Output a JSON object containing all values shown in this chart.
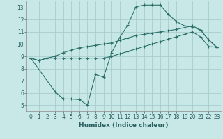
{
  "xlabel": "Humidex (Indice chaleur)",
  "xlim": [
    -0.5,
    23.5
  ],
  "ylim": [
    4.5,
    13.5
  ],
  "xticks": [
    0,
    1,
    2,
    3,
    4,
    5,
    6,
    7,
    8,
    9,
    10,
    11,
    12,
    13,
    14,
    15,
    16,
    17,
    18,
    19,
    20,
    21,
    22,
    23
  ],
  "yticks": [
    5,
    6,
    7,
    8,
    9,
    10,
    11,
    12,
    13
  ],
  "background_color": "#c8e8e8",
  "grid_color": "#a8cccc",
  "line_color": "#2a7068",
  "line1_x": [
    0,
    1,
    2,
    3,
    4,
    5,
    6,
    7,
    8,
    9,
    10,
    11,
    12,
    13,
    14,
    15,
    16,
    17,
    18,
    19,
    20,
    21,
    22,
    23
  ],
  "line1_y": [
    8.85,
    8.65,
    8.85,
    8.85,
    8.85,
    8.85,
    8.85,
    8.85,
    8.85,
    8.85,
    9.0,
    9.2,
    9.4,
    9.6,
    9.8,
    10.0,
    10.2,
    10.4,
    10.6,
    10.8,
    11.0,
    10.6,
    9.8,
    9.75
  ],
  "line2_x": [
    0,
    1,
    2,
    3,
    4,
    5,
    6,
    7,
    8,
    9,
    10,
    11,
    12,
    13,
    14,
    15,
    16,
    17,
    18,
    19,
    20,
    21,
    22,
    23
  ],
  "line2_y": [
    8.85,
    8.65,
    8.85,
    9.0,
    9.3,
    9.5,
    9.7,
    9.8,
    9.9,
    10.0,
    10.1,
    10.3,
    10.5,
    10.7,
    10.8,
    10.9,
    11.0,
    11.1,
    11.2,
    11.35,
    11.5,
    11.15,
    10.35,
    9.75
  ],
  "line3_x": [
    0,
    3,
    4,
    5,
    6,
    7,
    8,
    9,
    10,
    11,
    12,
    13,
    14,
    15,
    16,
    17,
    18,
    19,
    20,
    21,
    22,
    23
  ],
  "line3_y": [
    8.85,
    6.1,
    5.5,
    5.5,
    5.45,
    5.0,
    7.5,
    7.3,
    9.3,
    10.55,
    11.55,
    13.05,
    13.2,
    13.2,
    13.2,
    12.45,
    11.85,
    11.5,
    11.4,
    11.15,
    10.35,
    9.75
  ]
}
